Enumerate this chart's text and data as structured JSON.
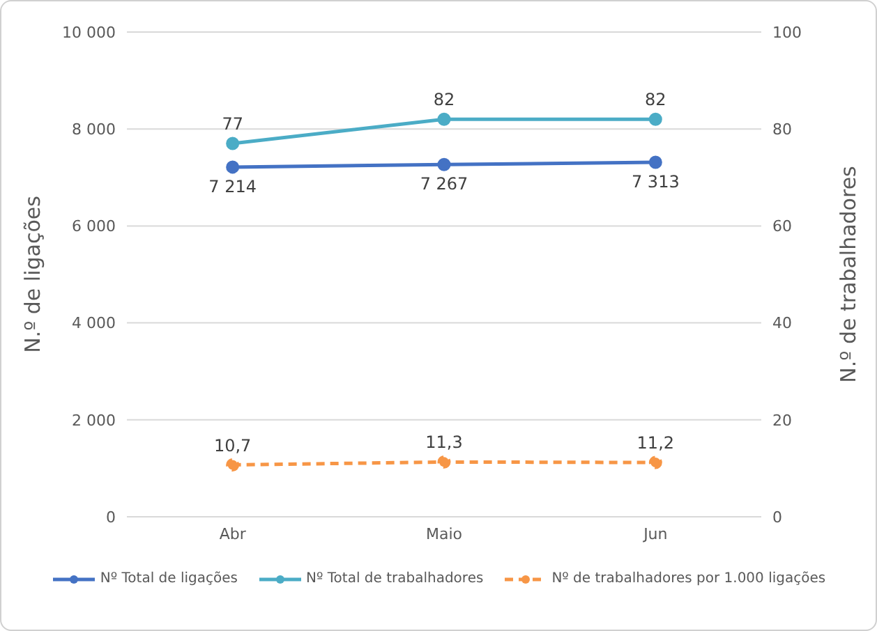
{
  "chart_data": {
    "type": "line",
    "categories": [
      "Abr",
      "Maio",
      "Jun"
    ],
    "ylabel": "N.º de ligações",
    "y2label": "N.º de trabalhadores",
    "ylim": [
      0,
      10000
    ],
    "yticks": [
      {
        "value": 0,
        "label": "0"
      },
      {
        "value": 2000,
        "label": "2 000"
      },
      {
        "value": 4000,
        "label": "4 000"
      },
      {
        "value": 6000,
        "label": "6 000"
      },
      {
        "value": 8000,
        "label": "8 000"
      },
      {
        "value": 10000,
        "label": "10 000"
      }
    ],
    "y2lim": [
      0,
      100
    ],
    "y2ticks": [
      0,
      20,
      40,
      60,
      80,
      100
    ],
    "series": [
      {
        "name": "Nº Total de ligações",
        "color": "#4472c4",
        "values": [
          7214,
          7267,
          7313
        ],
        "value_labels": [
          "7 214",
          "7 267",
          "7 313"
        ]
      },
      {
        "name": "Nº Total de trabalhadores",
        "color": "#4bacc6",
        "axis": "y2",
        "values": [
          77,
          82,
          82
        ],
        "value_labels": [
          "77",
          "82",
          "82"
        ]
      },
      {
        "name": "Nº de trabalhadores por 1.000 ligações",
        "color": "#f79646",
        "axis": "y2",
        "line_style": "dashed",
        "values": [
          10.7,
          11.3,
          11.2
        ],
        "value_labels": [
          "10,7",
          "11,3",
          "11,2"
        ]
      }
    ],
    "grid": "y",
    "legend": "bottom",
    "marker": "circle"
  }
}
